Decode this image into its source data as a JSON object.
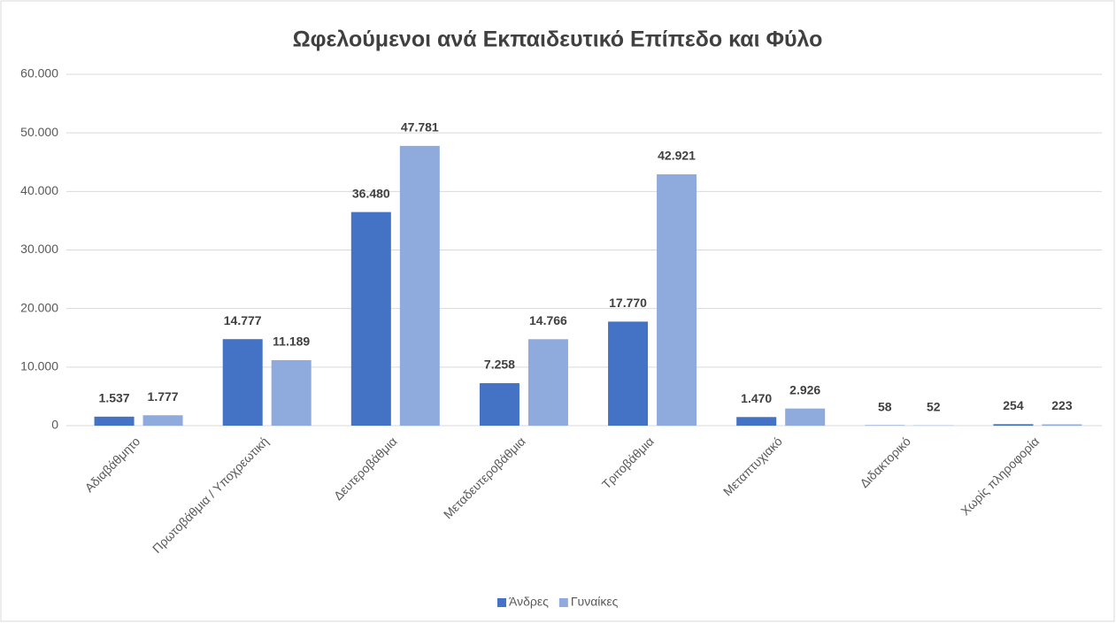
{
  "chart_data": {
    "type": "bar",
    "title": "Ωφελούμενοι ανά Εκπαιδευτικό Επίπεδο και Φύλο",
    "categories": [
      "Αδιαβάθμητο",
      "Πρωτοβάθμια / Υποχρεωτική",
      "Δευτεροβάθμια",
      "Μεταδευτεροβάθμια",
      "Τριτοβάθμια",
      "Μεταπτυχιακό",
      "Διδακτορικό",
      "Χωρίς πληροφορία"
    ],
    "series": [
      {
        "name": "Άνδρες",
        "color": "#4472c4",
        "values": [
          1537,
          14777,
          36480,
          7258,
          17770,
          1470,
          58,
          254
        ],
        "value_labels": [
          "1.537",
          "14.777",
          "36.480",
          "7.258",
          "17.770",
          "1.470",
          "58",
          "254"
        ]
      },
      {
        "name": "Γυναίκες",
        "color": "#8faadc",
        "values": [
          1777,
          11189,
          47781,
          14766,
          42921,
          2926,
          52,
          223
        ],
        "value_labels": [
          "1.777",
          "11.189",
          "47.781",
          "14.766",
          "42.921",
          "2.926",
          "52",
          "223"
        ]
      }
    ],
    "ylim": [
      0,
      60000
    ],
    "yticks": [
      0,
      {
        "value": 10000,
        "label": "10.000"
      },
      {
        "value": 20000,
        "label": "20.000"
      },
      {
        "value": 30000,
        "label": "30.000"
      },
      {
        "value": 40000,
        "label": "40.000"
      },
      {
        "value": 50000,
        "label": "50.000"
      },
      {
        "value": 60000,
        "label": "60.000"
      }
    ],
    "grid": true,
    "legend": "bottom"
  }
}
